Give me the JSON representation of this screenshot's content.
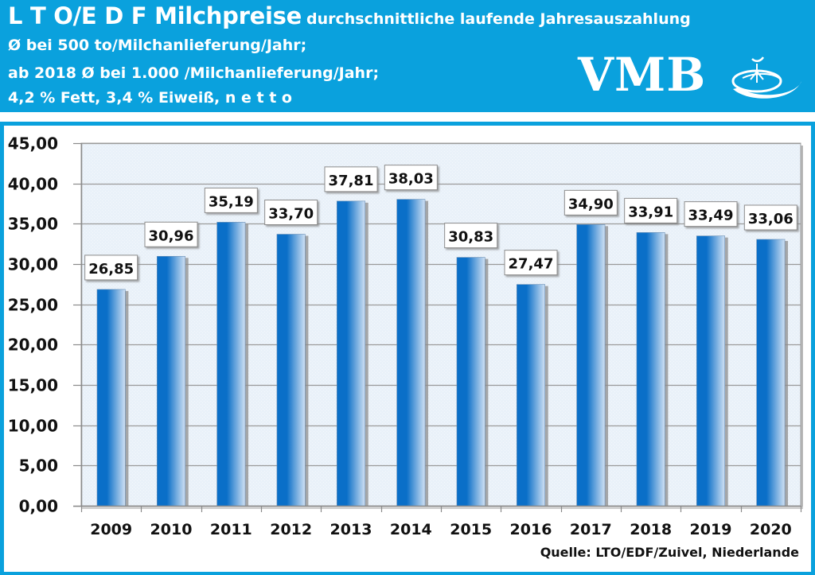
{
  "header": {
    "title_main": "L T O/E D F Milchpreise",
    "title_sub": "durchschnittliche laufende Jahresauszahlung",
    "line1": "Ø bei 500 to/Milchanlieferung/Jahr;",
    "line2": "ab 2018 Ø bei 1.000 /Milchanlieferung/Jahr;",
    "line3": "4,2 % Fett, 3,4 % Eiweiß,  n e t t o",
    "logo_text": "VMB",
    "logo_icon": "vmb-swirl-logo-icon",
    "background_color": "#0aa1dd"
  },
  "chart_data": {
    "type": "bar",
    "title": "L T O/E D F Milchpreise",
    "subtitle": "durchschnittliche laufende Jahresauszahlung",
    "categories": [
      "2009",
      "2010",
      "2011",
      "2012",
      "2013",
      "2014",
      "2015",
      "2016",
      "2017",
      "2018",
      "2019",
      "2020"
    ],
    "values": [
      26.85,
      30.96,
      35.19,
      33.7,
      37.81,
      38.03,
      30.83,
      27.47,
      34.9,
      33.91,
      33.49,
      33.06
    ],
    "value_labels": [
      "26,85",
      "30,96",
      "35,19",
      "33,70",
      "37,81",
      "38,03",
      "30,83",
      "27,47",
      "34,90",
      "33,91",
      "33,49",
      "33,06"
    ],
    "xlabel": "",
    "ylabel": "",
    "ylim": [
      0,
      45
    ],
    "yticks": [
      0,
      5,
      10,
      15,
      20,
      25,
      30,
      35,
      40,
      45
    ],
    "ytick_labels": [
      "0,00",
      "5,00",
      "10,00",
      "15,00",
      "20,00",
      "25,00",
      "30,00",
      "35,00",
      "40,00",
      "45,00"
    ],
    "grid": true,
    "legend": "none",
    "bar_color_dark": "#0a6fc8",
    "bar_color_light": "#cfe0f3",
    "plot_background": "#e9f1f9",
    "source": "Quelle: LTO/EDF/Zuivel, Niederlande"
  }
}
